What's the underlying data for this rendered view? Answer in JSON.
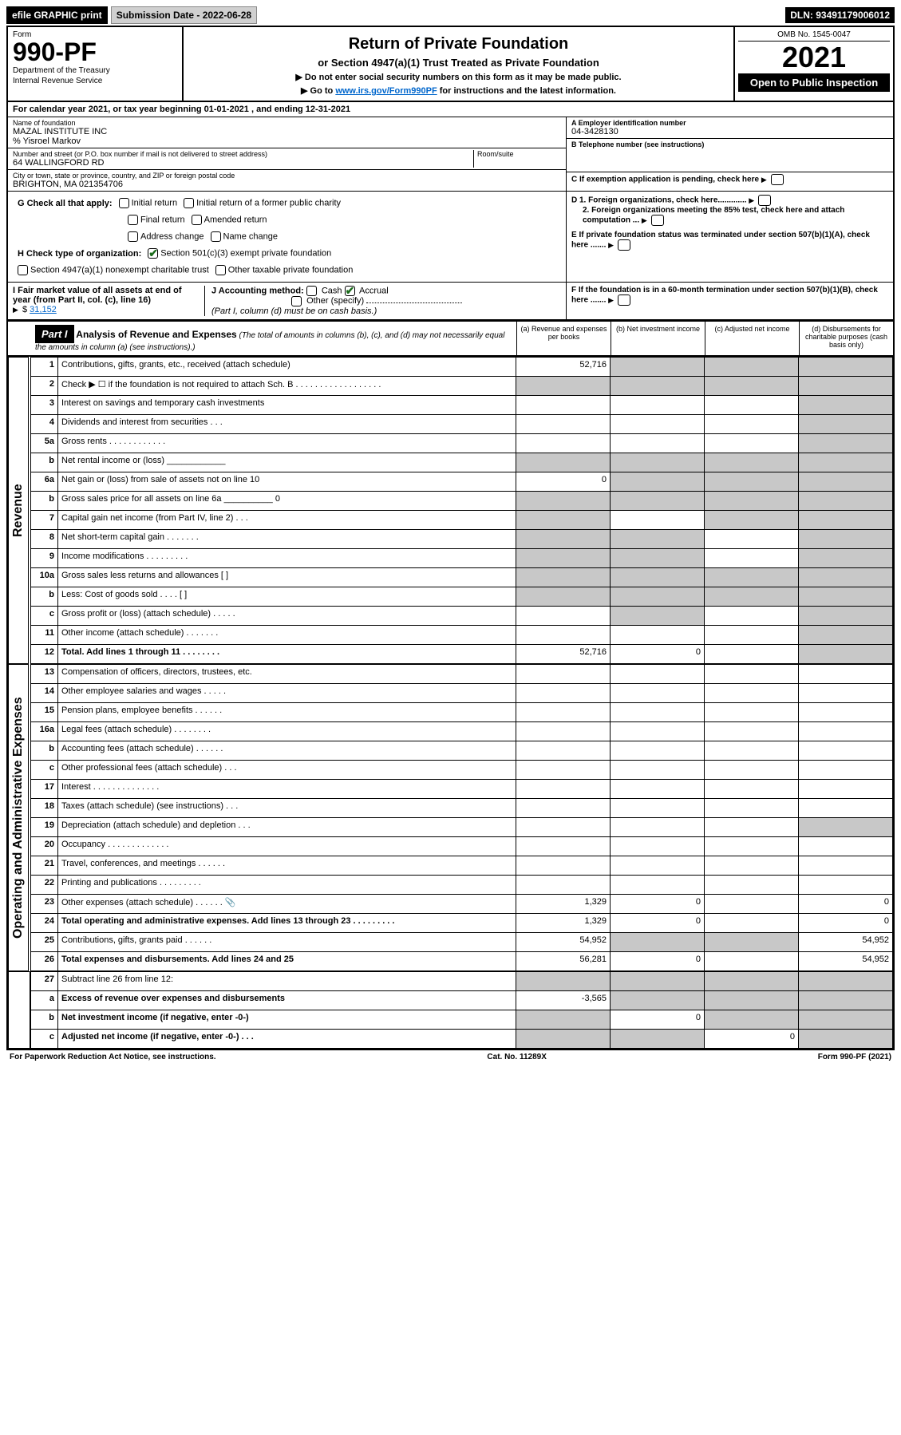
{
  "topbar": {
    "efile": "efile GRAPHIC print",
    "submission_label": "Submission Date - 2022-06-28",
    "dln": "DLN: 93491179006012"
  },
  "header": {
    "form_word": "Form",
    "form_number": "990-PF",
    "dept1": "Department of the Treasury",
    "dept2": "Internal Revenue Service",
    "title": "Return of Private Foundation",
    "subtitle": "or Section 4947(a)(1) Trust Treated as Private Foundation",
    "note1": "▶ Do not enter social security numbers on this form as it may be made public.",
    "note2_prefix": "▶ Go to ",
    "note2_link": "www.irs.gov/Form990PF",
    "note2_suffix": " for instructions and the latest information.",
    "omb": "OMB No. 1545-0047",
    "year": "2021",
    "open": "Open to Public Inspection"
  },
  "calendar": "For calendar year 2021, or tax year beginning 01-01-2021            , and ending 12-31-2021",
  "ident": {
    "name_lbl": "Name of foundation",
    "name_val": "MAZAL INSTITUTE INC",
    "care_of": "% Yisroel Markov",
    "addr_lbl": "Number and street (or P.O. box number if mail is not delivered to street address)",
    "addr_val": "64 WALLINGFORD RD",
    "room_lbl": "Room/suite",
    "city_lbl": "City or town, state or province, country, and ZIP or foreign postal code",
    "city_val": "BRIGHTON, MA  021354706",
    "a_lbl": "A Employer identification number",
    "a_val": "04-3428130",
    "b_lbl": "B Telephone number (see instructions)",
    "c_lbl": "C If exemption application is pending, check here",
    "d1": "D 1. Foreign organizations, check here.............",
    "d2": "2. Foreign organizations meeting the 85% test, check here and attach computation ...",
    "e": "E  If private foundation status was terminated under section 507(b)(1)(A), check here .......",
    "f": "F  If the foundation is in a 60-month termination under section 507(b)(1)(B), check here .......",
    "g_lbl": "G Check all that apply:",
    "g_opts": [
      "Initial return",
      "Initial return of a former public charity",
      "Final return",
      "Amended return",
      "Address change",
      "Name change"
    ],
    "h_lbl": "H Check type of organization:",
    "h_opt1": "Section 501(c)(3) exempt private foundation",
    "h_opt2": "Section 4947(a)(1) nonexempt charitable trust",
    "h_opt3": "Other taxable private foundation",
    "i_lbl": "I Fair market value of all assets at end of year (from Part II, col. (c), line 16)",
    "i_val": "31,152",
    "j_lbl": "J Accounting method:",
    "j_cash": "Cash",
    "j_accrual": "Accrual",
    "j_other": "Other (specify)",
    "j_note": "(Part I, column (d) must be on cash basis.)"
  },
  "part1": {
    "label": "Part I",
    "title": "Analysis of Revenue and Expenses",
    "title_note": " (The total of amounts in columns (b), (c), and (d) may not necessarily equal the amounts in column (a) (see instructions).)",
    "col_a": "(a)   Revenue and expenses per books",
    "col_b": "(b)   Net investment income",
    "col_c": "(c)   Adjusted net income",
    "col_d": "(d)   Disbursements for charitable purposes (cash basis only)"
  },
  "vlabels": {
    "revenue": "Revenue",
    "expenses": "Operating and Administrative Expenses"
  },
  "rows": [
    {
      "n": "1",
      "t": "Contributions, gifts, grants, etc., received (attach schedule)",
      "a": "52,716",
      "b": "",
      "c": "",
      "d": "",
      "sh": [
        "b",
        "c",
        "d"
      ]
    },
    {
      "n": "2",
      "t": "Check ▶ ☐ if the foundation is not required to attach Sch. B  . . . . . . . . . . . . . . . . . .",
      "a": "",
      "b": "",
      "c": "",
      "d": "",
      "sh": [
        "a",
        "b",
        "c",
        "d"
      ]
    },
    {
      "n": "3",
      "t": "Interest on savings and temporary cash investments",
      "a": "",
      "b": "",
      "c": "",
      "d": "",
      "sh": [
        "d"
      ]
    },
    {
      "n": "4",
      "t": "Dividends and interest from securities  .  .  .",
      "a": "",
      "b": "",
      "c": "",
      "d": "",
      "sh": [
        "d"
      ]
    },
    {
      "n": "5a",
      "t": "Gross rents  .  .  .  .  .  .  .  .  .  .  .  .",
      "a": "",
      "b": "",
      "c": "",
      "d": "",
      "sh": [
        "d"
      ]
    },
    {
      "n": "b",
      "t": "Net rental income or (loss)  ____________",
      "a": "",
      "b": "",
      "c": "",
      "d": "",
      "sh": [
        "a",
        "b",
        "c",
        "d"
      ]
    },
    {
      "n": "6a",
      "t": "Net gain or (loss) from sale of assets not on line 10",
      "a": "0",
      "b": "",
      "c": "",
      "d": "",
      "sh": [
        "b",
        "c",
        "d"
      ]
    },
    {
      "n": "b",
      "t": "Gross sales price for all assets on line 6a __________ 0",
      "a": "",
      "b": "",
      "c": "",
      "d": "",
      "sh": [
        "a",
        "b",
        "c",
        "d"
      ]
    },
    {
      "n": "7",
      "t": "Capital gain net income (from Part IV, line 2)  .  .  .",
      "a": "",
      "b": "",
      "c": "",
      "d": "",
      "sh": [
        "a",
        "c",
        "d"
      ]
    },
    {
      "n": "8",
      "t": "Net short-term capital gain  .  .  .  .  .  .  .",
      "a": "",
      "b": "",
      "c": "",
      "d": "",
      "sh": [
        "a",
        "b",
        "d"
      ]
    },
    {
      "n": "9",
      "t": "Income modifications  .  .  .  .  .  .  .  .  .",
      "a": "",
      "b": "",
      "c": "",
      "d": "",
      "sh": [
        "a",
        "b",
        "d"
      ]
    },
    {
      "n": "10a",
      "t": "Gross sales less returns and allowances  [        ]",
      "a": "",
      "b": "",
      "c": "",
      "d": "",
      "sh": [
        "a",
        "b",
        "c",
        "d"
      ]
    },
    {
      "n": "b",
      "t": "Less: Cost of goods sold  .  .  .  .  [        ]",
      "a": "",
      "b": "",
      "c": "",
      "d": "",
      "sh": [
        "a",
        "b",
        "c",
        "d"
      ]
    },
    {
      "n": "c",
      "t": "Gross profit or (loss) (attach schedule)  .  .  .  .  .",
      "a": "",
      "b": "",
      "c": "",
      "d": "",
      "sh": [
        "b",
        "d"
      ]
    },
    {
      "n": "11",
      "t": "Other income (attach schedule)  .  .  .  .  .  .  .",
      "a": "",
      "b": "",
      "c": "",
      "d": "",
      "sh": [
        "d"
      ]
    },
    {
      "n": "12",
      "t": "Total. Add lines 1 through 11  .  .  .  .  .  .  .  .",
      "a": "52,716",
      "b": "0",
      "c": "",
      "d": "",
      "sh": [
        "d"
      ],
      "bold": true
    }
  ],
  "exp_rows": [
    {
      "n": "13",
      "t": "Compensation of officers, directors, trustees, etc.",
      "a": "",
      "b": "",
      "c": "",
      "d": ""
    },
    {
      "n": "14",
      "t": "Other employee salaries and wages  .  .  .  .  .",
      "a": "",
      "b": "",
      "c": "",
      "d": ""
    },
    {
      "n": "15",
      "t": "Pension plans, employee benefits  .  .  .  .  .  .",
      "a": "",
      "b": "",
      "c": "",
      "d": ""
    },
    {
      "n": "16a",
      "t": "Legal fees (attach schedule)  .  .  .  .  .  .  .  .",
      "a": "",
      "b": "",
      "c": "",
      "d": ""
    },
    {
      "n": "b",
      "t": "Accounting fees (attach schedule)  .  .  .  .  .  .",
      "a": "",
      "b": "",
      "c": "",
      "d": ""
    },
    {
      "n": "c",
      "t": "Other professional fees (attach schedule)  .  .  .",
      "a": "",
      "b": "",
      "c": "",
      "d": ""
    },
    {
      "n": "17",
      "t": "Interest  .  .  .  .  .  .  .  .  .  .  .  .  .  .",
      "a": "",
      "b": "",
      "c": "",
      "d": ""
    },
    {
      "n": "18",
      "t": "Taxes (attach schedule) (see instructions)  .  .  .",
      "a": "",
      "b": "",
      "c": "",
      "d": ""
    },
    {
      "n": "19",
      "t": "Depreciation (attach schedule) and depletion  .  .  .",
      "a": "",
      "b": "",
      "c": "",
      "d": "",
      "sh": [
        "d"
      ]
    },
    {
      "n": "20",
      "t": "Occupancy  .  .  .  .  .  .  .  .  .  .  .  .  .",
      "a": "",
      "b": "",
      "c": "",
      "d": ""
    },
    {
      "n": "21",
      "t": "Travel, conferences, and meetings  .  .  .  .  .  .",
      "a": "",
      "b": "",
      "c": "",
      "d": ""
    },
    {
      "n": "22",
      "t": "Printing and publications  .  .  .  .  .  .  .  .  .",
      "a": "",
      "b": "",
      "c": "",
      "d": ""
    },
    {
      "n": "23",
      "t": "Other expenses (attach schedule)  .  .  .  .  .  .",
      "a": "1,329",
      "b": "0",
      "c": "",
      "d": "0",
      "icon": true
    },
    {
      "n": "24",
      "t": "Total operating and administrative expenses. Add lines 13 through 23  .  .  .  .  .  .  .  .  .",
      "a": "1,329",
      "b": "0",
      "c": "",
      "d": "0",
      "bold": true
    },
    {
      "n": "25",
      "t": "Contributions, gifts, grants paid  .  .  .  .  .  .",
      "a": "54,952",
      "b": "",
      "c": "",
      "d": "54,952",
      "sh": [
        "b",
        "c"
      ]
    },
    {
      "n": "26",
      "t": "Total expenses and disbursements. Add lines 24 and 25",
      "a": "56,281",
      "b": "0",
      "c": "",
      "d": "54,952",
      "bold": true
    }
  ],
  "bottom_rows": [
    {
      "n": "27",
      "t": "Subtract line 26 from line 12:",
      "a": "",
      "b": "",
      "c": "",
      "d": "",
      "sh": [
        "a",
        "b",
        "c",
        "d"
      ]
    },
    {
      "n": "a",
      "t": "Excess of revenue over expenses and disbursements",
      "a": "-3,565",
      "b": "",
      "c": "",
      "d": "",
      "sh": [
        "b",
        "c",
        "d"
      ],
      "bold": true
    },
    {
      "n": "b",
      "t": "Net investment income (if negative, enter -0-)",
      "a": "",
      "b": "0",
      "c": "",
      "d": "",
      "sh": [
        "a",
        "c",
        "d"
      ],
      "bold": true
    },
    {
      "n": "c",
      "t": "Adjusted net income (if negative, enter -0-)  .  .  .",
      "a": "",
      "b": "",
      "c": "0",
      "d": "",
      "sh": [
        "a",
        "b",
        "d"
      ],
      "bold": true
    }
  ],
  "footer": {
    "left": "For Paperwork Reduction Act Notice, see instructions.",
    "mid": "Cat. No. 11289X",
    "right": "Form 990-PF (2021)"
  }
}
